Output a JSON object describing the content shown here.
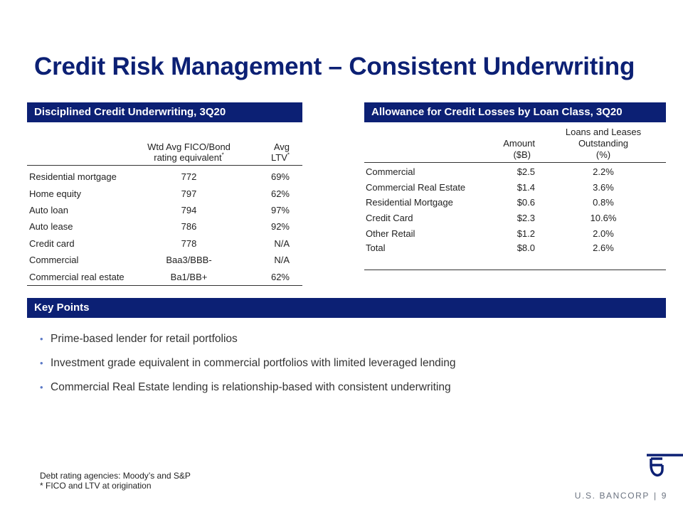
{
  "title": "Credit Risk Management – Consistent Underwriting",
  "left_section": {
    "banner": "Disciplined Credit Underwriting, 3Q20",
    "headers": {
      "fico_line1": "Wtd Avg FICO/Bond",
      "fico_line2": "rating equivalent",
      "ltv_line1": "Avg",
      "ltv_line2": "LTV",
      "marker": "*"
    },
    "rows": [
      {
        "label": "Residential mortgage",
        "fico": "772",
        "ltv": "69%"
      },
      {
        "label": "Home equity",
        "fico": "797",
        "ltv": "62%"
      },
      {
        "label": "Auto loan",
        "fico": "794",
        "ltv": "97%"
      },
      {
        "label": "Auto lease",
        "fico": "786",
        "ltv": "92%"
      },
      {
        "label": "Credit card",
        "fico": "778",
        "ltv": "N/A"
      },
      {
        "label": "Commercial",
        "fico": "Baa3/BBB-",
        "ltv": "N/A"
      },
      {
        "label": "Commercial real estate",
        "fico": "Ba1/BB+",
        "ltv": "62%"
      }
    ]
  },
  "right_section": {
    "banner": "Allowance for Credit Losses by Loan Class, 3Q20",
    "headers": {
      "amount_line1": "Amount",
      "amount_line2": "($B)",
      "loans_line1": "Loans and Leases",
      "loans_line2": "Outstanding",
      "loans_line3": "(%)"
    },
    "rows": [
      {
        "label": "Commercial",
        "amount": "$2.5",
        "pct": "2.2%"
      },
      {
        "label": "Commercial Real Estate",
        "amount": "$1.4",
        "pct": "3.6%"
      },
      {
        "label": "Residential Mortgage",
        "amount": "$0.6",
        "pct": "0.8%"
      },
      {
        "label": "Credit Card",
        "amount": "$2.3",
        "pct": "10.6%"
      },
      {
        "label": "Other Retail",
        "amount": "$1.2",
        "pct": "2.0%"
      },
      {
        "label": "Total",
        "amount": "$8.0",
        "pct": "2.6%"
      }
    ]
  },
  "key_points": {
    "banner": "Key Points",
    "bullet": "•",
    "items": [
      "Prime-based lender for retail portfolios",
      "Investment grade equivalent in commercial portfolios with limited leveraged lending",
      "Commercial Real Estate lending is relationship-based with consistent underwriting"
    ]
  },
  "footnotes": {
    "line1": "Debt rating agencies: Moody’s and S&P",
    "line2": "* FICO and LTV at origination"
  },
  "brand": {
    "name": "U.S. BANCORP",
    "separator": "|",
    "page_number": "9"
  },
  "colors": {
    "primary_navy": "#0c2074",
    "bullet_blue": "#5b79c7"
  }
}
